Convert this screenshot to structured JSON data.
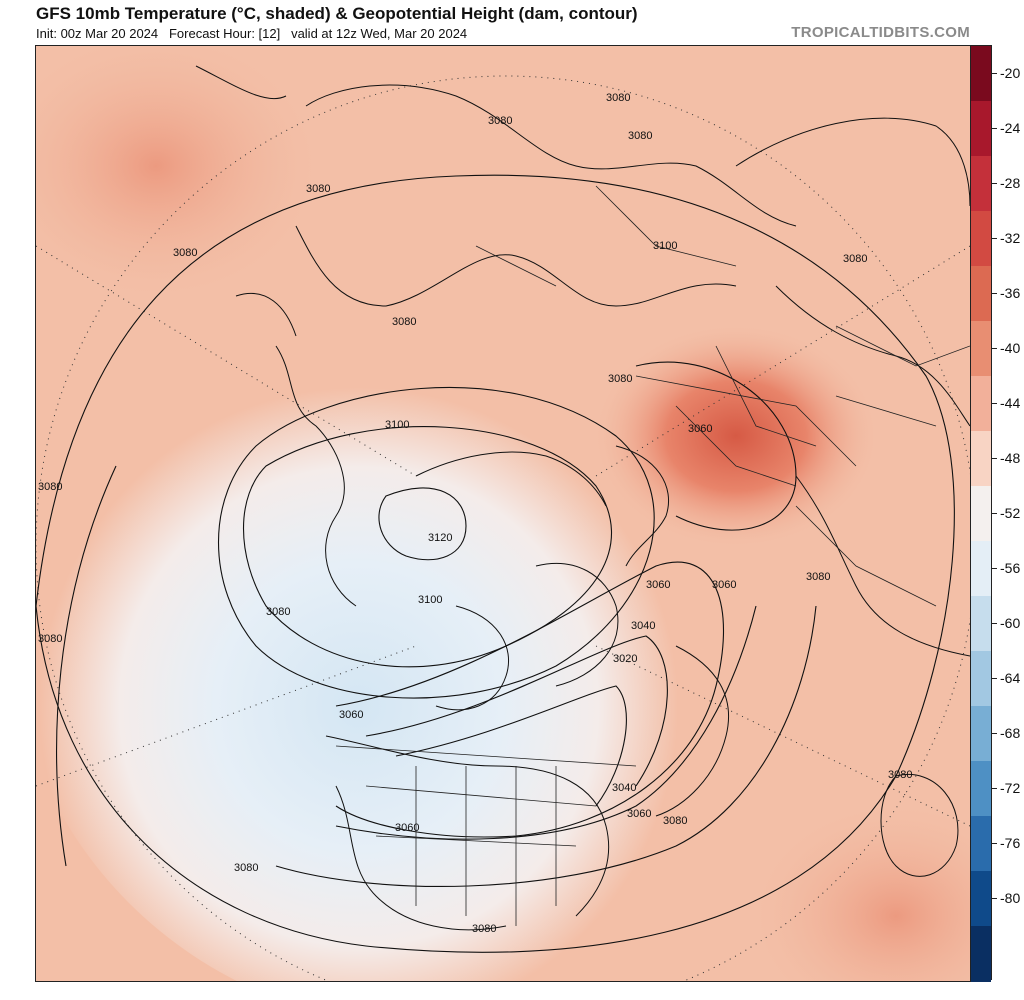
{
  "header": {
    "title": "GFS 10mb Temperature (°C, shaded) & Geopotential Height (dam, contour)",
    "subtitle": "Init: 00z Mar 20 2024   Forecast Hour: [12]   valid at 12z Wed, Mar 20 2024",
    "brand": "TROPICALTIDBITS.COM"
  },
  "map": {
    "projection": "polar stereographic, north pole",
    "contour_labels": [
      "3080",
      "3080",
      "3080",
      "3080",
      "3100",
      "3080",
      "3080",
      "3080",
      "3080",
      "3100",
      "3060",
      "3120",
      "3100",
      "3080",
      "3060",
      "3060",
      "3040",
      "3020",
      "3060",
      "3080",
      "3080",
      "3040",
      "3060",
      "3080",
      "3060",
      "3080",
      "3080",
      "3080",
      "3080"
    ]
  },
  "colorbar": {
    "unit": "°C",
    "ticks": [
      "-20",
      "-24",
      "-28",
      "-32",
      "-36",
      "-40",
      "-44",
      "-48",
      "-52",
      "-56",
      "-60",
      "-64",
      "-68",
      "-72",
      "-76",
      "-80"
    ],
    "colors": [
      "#7a0a1e",
      "#a8182c",
      "#c4303a",
      "#d24a42",
      "#dc6a52",
      "#e88e72",
      "#f2b09a",
      "#f8d4c4",
      "#f4f0ee",
      "#e4eef6",
      "#c6dded",
      "#a2c8e2",
      "#78aed4",
      "#4e90c4",
      "#2a6cac",
      "#0f4a8a",
      "#0a2f62"
    ]
  }
}
